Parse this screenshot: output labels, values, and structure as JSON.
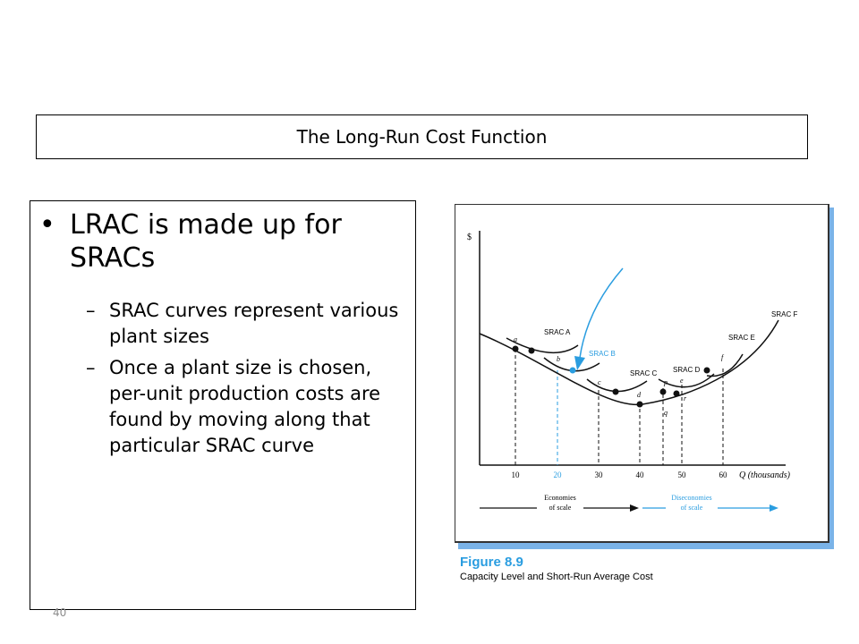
{
  "slide": {
    "title": "The Long-Run Cost Function",
    "page_number": "40"
  },
  "content": {
    "bullet": "LRAC is made up for SRACs",
    "sub_bullets": [
      "SRAC curves represent various plant sizes",
      "Once a plant size is chosen, per-unit production costs are found by moving along that particular SRAC curve"
    ]
  },
  "figure": {
    "caption_title": "Figure 8.9",
    "caption_subtitle": "Capacity Level and Short-Run Average Cost",
    "y_axis_label": "$",
    "x_axis_label": "Q (thousands)",
    "x_ticks": [
      "10",
      "20",
      "30",
      "40",
      "50",
      "60"
    ],
    "curve_labels": [
      "SRAC A",
      "SRAC B",
      "SRAC C",
      "SRAC D",
      "SRAC E",
      "SRAC F"
    ],
    "point_labels": [
      "a",
      "b",
      "c",
      "d",
      "p",
      "e",
      "f",
      "q",
      "r"
    ],
    "economies_label": [
      "Economies",
      "of scale"
    ],
    "diseconomies_label": [
      "Diseconomies",
      "of scale"
    ],
    "colors": {
      "highlight": "#2a9de0",
      "figure_border": "#333333",
      "figure_shadow": "#7ab3e8"
    }
  }
}
